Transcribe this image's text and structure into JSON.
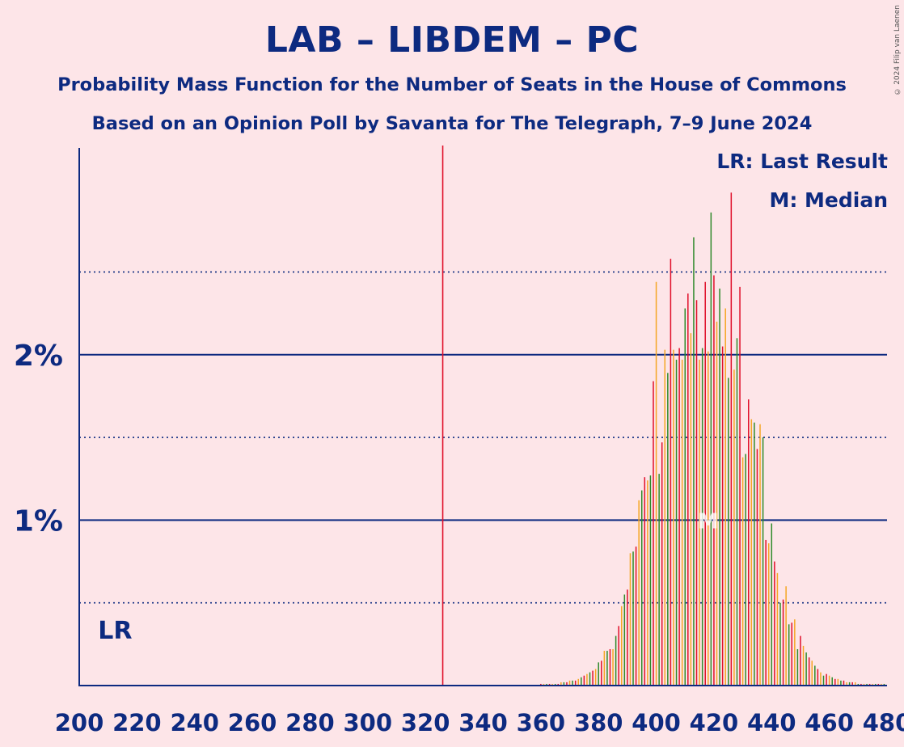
{
  "title": "LAB – LIBDEM – PC",
  "subtitle": "Probability Mass Function for the Number of Seats in the House of Commons",
  "subtitle2": "Based on an Opinion Poll by Savanta for The Telegraph, 7–9 June 2024",
  "legend": {
    "lr": "LR: Last Result",
    "median": "M: Median"
  },
  "copyright": "© 2024 Filip van Laenen",
  "colors": {
    "background": "#fde5e8",
    "axis": "#0d2a80",
    "majority_line": "#e0102a",
    "bar_colors": [
      "#e0102a",
      "#f5a623",
      "#2f8a2a"
    ]
  },
  "chart_data": {
    "type": "bar",
    "xlim": [
      200,
      480
    ],
    "ylim": [
      0,
      3.25
    ],
    "y_unit": "%",
    "x_ticks": [
      "200",
      "220",
      "240",
      "260",
      "280",
      "300",
      "320",
      "340",
      "360",
      "380",
      "400",
      "420",
      "440",
      "460",
      "480"
    ],
    "y_ticks": [
      {
        "value": 1,
        "label": "1%"
      },
      {
        "value": 2,
        "label": "2%"
      }
    ],
    "y_minor_gridlines": [
      0.5,
      1.5,
      2.5
    ],
    "majority_threshold": 326,
    "last_result": {
      "seats": 213,
      "label": "LR"
    },
    "median": {
      "seats": 418,
      "label": "M"
    },
    "x": [
      360,
      361,
      362,
      363,
      364,
      365,
      366,
      367,
      368,
      369,
      370,
      371,
      372,
      373,
      374,
      375,
      376,
      377,
      378,
      379,
      380,
      381,
      382,
      383,
      384,
      385,
      386,
      387,
      388,
      389,
      390,
      391,
      392,
      393,
      394,
      395,
      396,
      397,
      398,
      399,
      400,
      401,
      402,
      403,
      404,
      405,
      406,
      407,
      408,
      409,
      410,
      411,
      412,
      413,
      414,
      415,
      416,
      417,
      418,
      419,
      420,
      421,
      422,
      423,
      424,
      425,
      426,
      427,
      428,
      429,
      430,
      431,
      432,
      433,
      434,
      435,
      436,
      437,
      438,
      439,
      440,
      441,
      442,
      443,
      444,
      445,
      446,
      447,
      448,
      449,
      450,
      451,
      452,
      453,
      454,
      455,
      456,
      457,
      458,
      459,
      460,
      461,
      462,
      463,
      464,
      465,
      466,
      467,
      468,
      469,
      470,
      471,
      472,
      473,
      474,
      475,
      476,
      477,
      478,
      479
    ],
    "values": [
      0.01,
      0.01,
      0.01,
      0.01,
      0.01,
      0.01,
      0.01,
      0.02,
      0.02,
      0.02,
      0.03,
      0.03,
      0.03,
      0.04,
      0.05,
      0.06,
      0.07,
      0.08,
      0.09,
      0.1,
      0.14,
      0.15,
      0.21,
      0.21,
      0.22,
      0.22,
      0.3,
      0.36,
      0.48,
      0.55,
      0.58,
      0.8,
      0.81,
      0.84,
      1.12,
      1.18,
      1.26,
      1.24,
      1.27,
      1.84,
      2.44,
      1.28,
      1.47,
      2.03,
      1.89,
      2.58,
      2.03,
      1.97,
      2.04,
      1.97,
      2.28,
      2.37,
      2.13,
      2.71,
      2.33,
      1.97,
      2.04,
      2.44,
      2.02,
      2.86,
      2.48,
      2.2,
      2.4,
      2.05,
      2.28,
      1.86,
      2.98,
      1.91,
      2.1,
      2.41,
      1.38,
      1.4,
      1.73,
      1.61,
      1.59,
      1.43,
      1.58,
      1.5,
      0.88,
      0.86,
      0.98,
      0.75,
      0.68,
      0.5,
      0.52,
      0.6,
      0.37,
      0.38,
      0.4,
      0.22,
      0.3,
      0.24,
      0.2,
      0.17,
      0.15,
      0.12,
      0.1,
      0.08,
      0.06,
      0.07,
      0.06,
      0.05,
      0.04,
      0.04,
      0.03,
      0.03,
      0.02,
      0.02,
      0.02,
      0.02,
      0.01,
      0.01,
      0.01,
      0.01,
      0.01,
      0.01,
      0.01,
      0.01,
      0.01,
      0.01
    ]
  }
}
